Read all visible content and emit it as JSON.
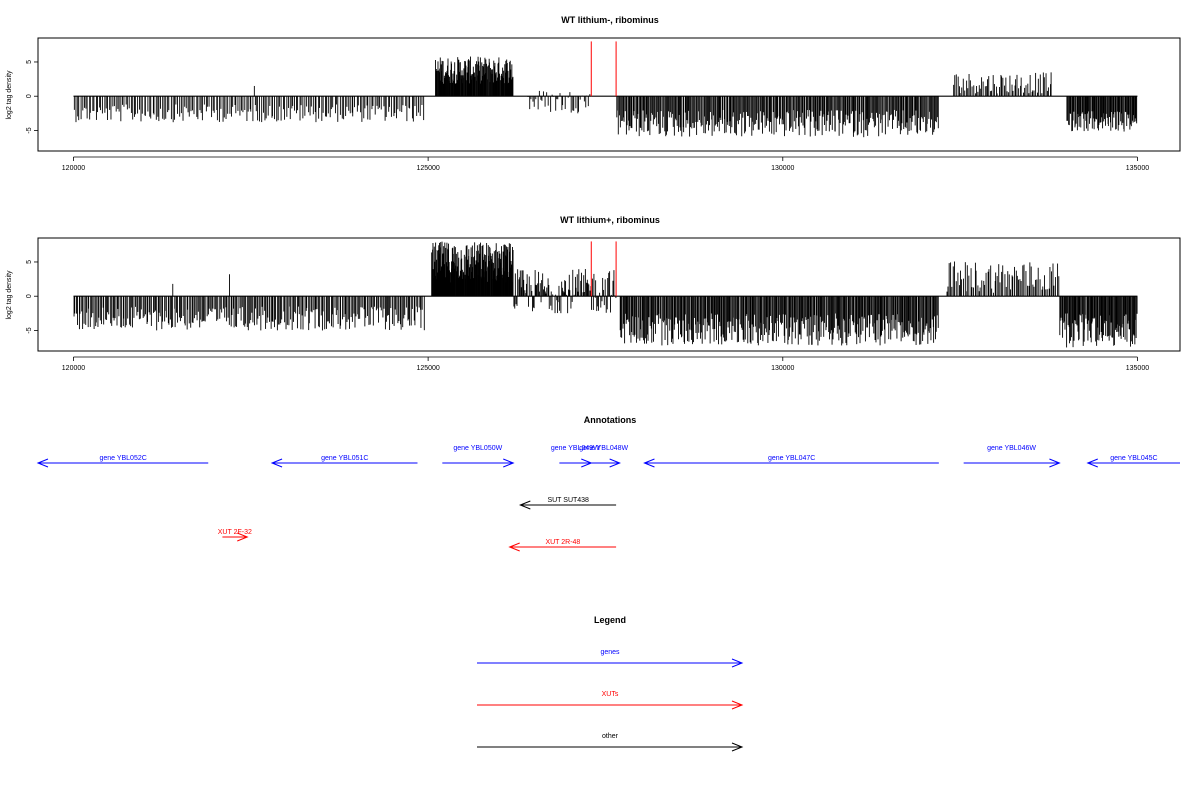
{
  "chart_data": [
    {
      "type": "bar",
      "title": "WT lithium-, ribominus",
      "ylabel": "log2 tag density",
      "xlim": [
        119500,
        135600
      ],
      "ylim": [
        -8,
        8.5
      ],
      "xticks": [
        120000,
        125000,
        130000,
        135000
      ],
      "yticks": [
        -5,
        0,
        5
      ],
      "baseline": [
        120000,
        135000
      ],
      "segments": [
        {
          "from": 120000,
          "to": 124950,
          "min": -3.8,
          "max": -1.2,
          "n": 210,
          "spikes": [
            {
              "x": 122550,
              "y": 1.5
            }
          ]
        },
        {
          "from": 125100,
          "to": 126200,
          "min": 1.8,
          "max": 5.8,
          "n": 150
        },
        {
          "from": 126400,
          "to": 127300,
          "min": -2.5,
          "max": 1.0,
          "n": 40
        },
        {
          "from": 127650,
          "to": 132200,
          "min": -6.0,
          "max": -2.0,
          "n": 330
        },
        {
          "from": 132400,
          "to": 133800,
          "min": 0.4,
          "max": 3.5,
          "n": 70
        },
        {
          "from": 134000,
          "to": 135000,
          "min": -5.2,
          "max": -2.2,
          "n": 90
        }
      ],
      "markers": [
        {
          "x": 127300,
          "y": 8.0
        },
        {
          "x": 127650,
          "y": 8.0
        }
      ]
    },
    {
      "type": "bar",
      "title": "WT lithium+, ribominus",
      "ylabel": "log2 tag density",
      "xlim": [
        119500,
        135600
      ],
      "ylim": [
        -8,
        8.5
      ],
      "xticks": [
        120000,
        125000,
        130000,
        135000
      ],
      "yticks": [
        -5,
        0,
        5
      ],
      "baseline": [
        120000,
        135000
      ],
      "segments": [
        {
          "from": 120000,
          "to": 124950,
          "min": -5.0,
          "max": -1.5,
          "n": 280,
          "spikes": [
            {
              "x": 122200,
              "y": 3.2
            },
            {
              "x": 121400,
              "y": 1.8
            }
          ]
        },
        {
          "from": 125050,
          "to": 126200,
          "min": 2.0,
          "max": 8.0,
          "n": 200
        },
        {
          "from": 126200,
          "to": 127650,
          "min": -2.5,
          "max": 4.0,
          "n": 120
        },
        {
          "from": 127700,
          "to": 132200,
          "min": -7.2,
          "max": -2.5,
          "n": 360
        },
        {
          "from": 132300,
          "to": 133900,
          "min": 0.5,
          "max": 5.2,
          "n": 80
        },
        {
          "from": 133900,
          "to": 135000,
          "min": -7.5,
          "max": -2.5,
          "n": 100
        }
      ],
      "markers": [
        {
          "x": 127300,
          "y": 8.0
        },
        {
          "x": 127650,
          "y": 8.0
        }
      ]
    }
  ],
  "annotations": {
    "title": "Annotations",
    "xlim": [
      119500,
      135600
    ],
    "items": [
      {
        "label": "gene YBL052C",
        "start": 121900,
        "end": 119500,
        "row": 0,
        "color": "#0000ff"
      },
      {
        "label": "gene YBL051C",
        "start": 124850,
        "end": 122800,
        "row": 0,
        "color": "#0000ff"
      },
      {
        "label": "gene YBL050W",
        "start": 125200,
        "end": 126200,
        "row": 0,
        "color": "#0000ff",
        "label_up": true
      },
      {
        "label": "gene YBL049W",
        "start": 126850,
        "end": 127300,
        "row": 0,
        "color": "#0000ff",
        "label_up": true
      },
      {
        "label": "gene YBL048W",
        "start": 127250,
        "end": 127700,
        "row": 0,
        "color": "#0000ff",
        "label_up": true
      },
      {
        "label": "gene YBL047C",
        "start": 132200,
        "end": 128050,
        "row": 0,
        "color": "#0000ff"
      },
      {
        "label": "gene YBL046W",
        "start": 132550,
        "end": 133900,
        "row": 0,
        "color": "#0000ff",
        "label_up": true
      },
      {
        "label": "gene YBL045C",
        "start": 135600,
        "end": 134300,
        "row": 0,
        "color": "#0000ff"
      },
      {
        "label": "SUT SUT438",
        "start": 127650,
        "end": 126300,
        "row": 1,
        "color": "#000000"
      },
      {
        "label": "XUT 2F-32",
        "start": 122100,
        "end": 122450,
        "row": 2,
        "color": "#ff0000"
      },
      {
        "label": "XUT 2R-48",
        "start": 127650,
        "end": 126150,
        "row": 3,
        "color": "#ff0000"
      }
    ]
  },
  "legend": {
    "title": "Legend",
    "items": [
      {
        "label": "genes",
        "color": "#0000ff"
      },
      {
        "label": "XUTs",
        "color": "#ff0000"
      },
      {
        "label": "other",
        "color": "#000000"
      }
    ]
  }
}
